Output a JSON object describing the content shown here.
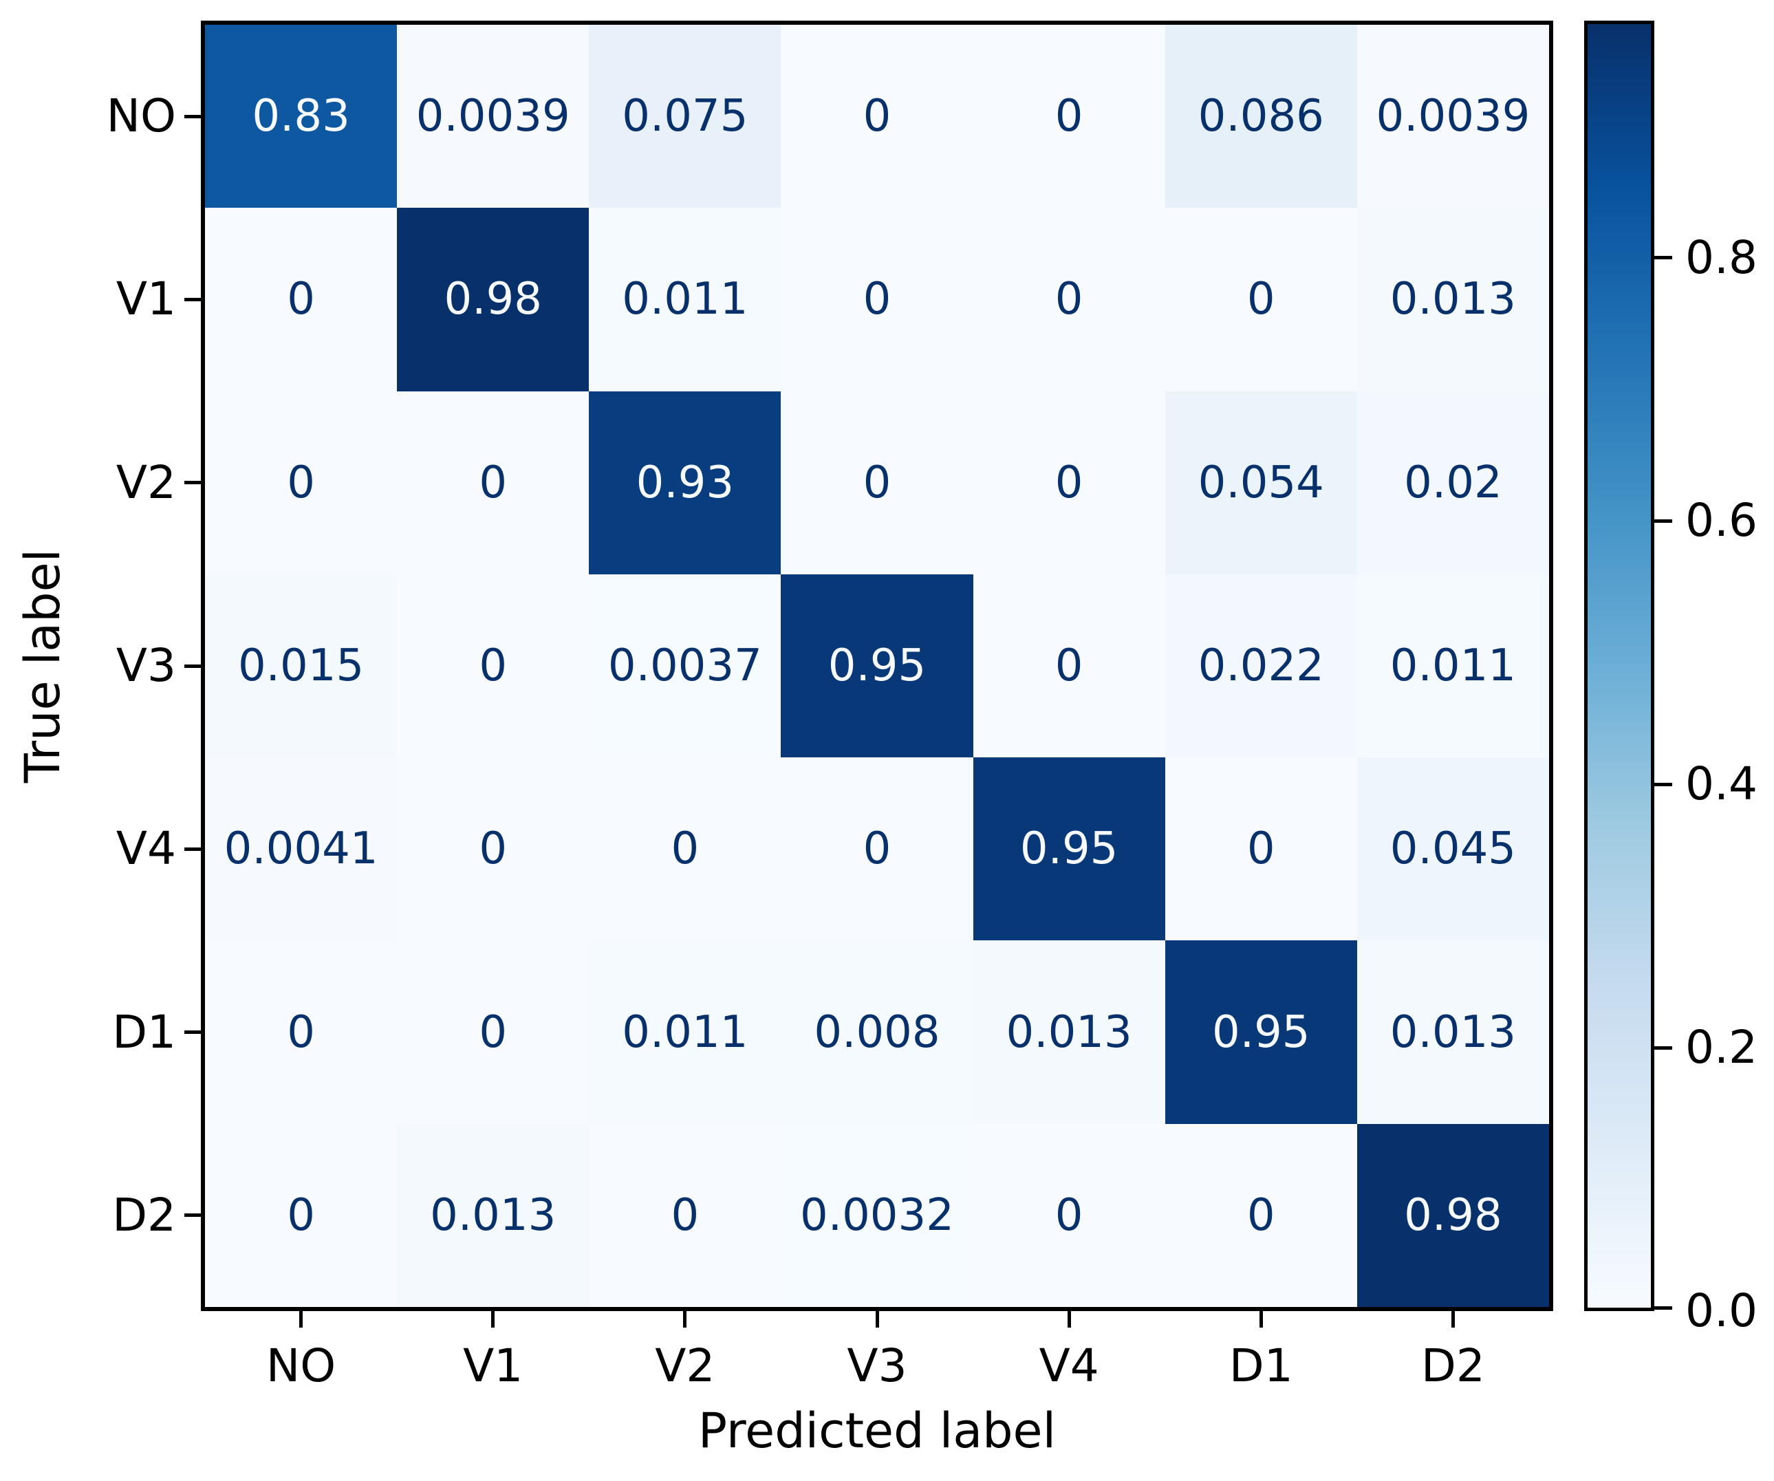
{
  "chart_data": {
    "type": "heatmap",
    "subtype": "confusion-matrix",
    "title": "",
    "xlabel": "Predicted label",
    "ylabel": "True label",
    "x_tick_labels": [
      "NO",
      "V1",
      "V2",
      "V3",
      "V4",
      "D1",
      "D2"
    ],
    "y_tick_labels": [
      "NO",
      "V1",
      "V2",
      "V3",
      "V4",
      "D1",
      "D2"
    ],
    "rows": [
      {
        "true_label": "NO",
        "values": [
          "0.83",
          "0.0039",
          "0.075",
          "0",
          "0",
          "0.086",
          "0.0039"
        ]
      },
      {
        "true_label": "V1",
        "values": [
          "0",
          "0.98",
          "0.011",
          "0",
          "0",
          "0",
          "0.013"
        ]
      },
      {
        "true_label": "V2",
        "values": [
          "0",
          "0",
          "0.93",
          "0",
          "0",
          "0.054",
          "0.02"
        ]
      },
      {
        "true_label": "V3",
        "values": [
          "0.015",
          "0",
          "0.0037",
          "0.95",
          "0",
          "0.022",
          "0.011"
        ]
      },
      {
        "true_label": "V4",
        "values": [
          "0.0041",
          "0",
          "0",
          "0",
          "0.95",
          "0",
          "0.045"
        ]
      },
      {
        "true_label": "D1",
        "values": [
          "0",
          "0",
          "0.011",
          "0.008",
          "0.013",
          "0.95",
          "0.013"
        ]
      },
      {
        "true_label": "D2",
        "values": [
          "0",
          "0.013",
          "0",
          "0.0032",
          "0",
          "0",
          "0.98"
        ]
      }
    ],
    "vmin": 0,
    "vmax": 0.98,
    "colorbar_tick_labels": [
      "0.8",
      "0.6",
      "0.4",
      "0.2",
      "0.0"
    ],
    "colormap_name": "Blues",
    "colormap_stops": [
      [
        0.0,
        "#f7fbff"
      ],
      [
        0.125,
        "#deebf7"
      ],
      [
        0.25,
        "#c6dbef"
      ],
      [
        0.375,
        "#9ecae1"
      ],
      [
        0.5,
        "#6baed6"
      ],
      [
        0.625,
        "#4292c6"
      ],
      [
        0.75,
        "#2171b5"
      ],
      [
        0.875,
        "#08519c"
      ],
      [
        1.0,
        "#08306b"
      ]
    ],
    "cell_text_light": "#f7fbff",
    "cell_text_dark": "#08306b",
    "axis_color": "#000000",
    "legend_position": "right-colorbar",
    "grid": false
  }
}
